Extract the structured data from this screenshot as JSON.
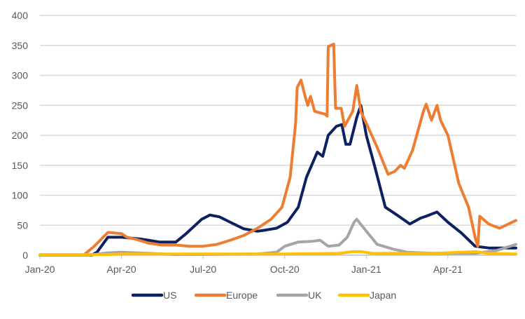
{
  "chart_data": {
    "type": "line",
    "title": "",
    "xlabel": "",
    "ylabel": "",
    "x_unit": "months since Jan-20",
    "xlim": [
      0,
      17.5
    ],
    "ylim": [
      0,
      400
    ],
    "yticks": [
      0,
      50,
      100,
      150,
      200,
      250,
      300,
      350,
      400
    ],
    "xticks": [
      {
        "at": 0,
        "label": "Jan-20"
      },
      {
        "at": 3,
        "label": "Apr-20"
      },
      {
        "at": 6,
        "label": "Jul-20"
      },
      {
        "at": 9,
        "label": "Oct-20"
      },
      {
        "at": 12,
        "label": "Jan-21"
      },
      {
        "at": 15,
        "label": "Apr-21"
      }
    ],
    "grid": true,
    "legend_position": "bottom",
    "series": [
      {
        "name": "US",
        "color": "#0d2160",
        "points": [
          [
            0,
            0
          ],
          [
            1.9,
            0
          ],
          [
            2.1,
            5
          ],
          [
            2.5,
            30
          ],
          [
            3.0,
            30
          ],
          [
            3.7,
            27
          ],
          [
            4.4,
            22
          ],
          [
            5.0,
            22
          ],
          [
            5.35,
            35
          ],
          [
            5.95,
            60
          ],
          [
            6.25,
            67
          ],
          [
            6.6,
            64
          ],
          [
            7.0,
            55
          ],
          [
            7.5,
            44
          ],
          [
            8.0,
            40
          ],
          [
            8.3,
            42
          ],
          [
            8.7,
            45
          ],
          [
            9.1,
            55
          ],
          [
            9.5,
            80
          ],
          [
            9.8,
            130
          ],
          [
            10.2,
            172
          ],
          [
            10.4,
            165
          ],
          [
            10.6,
            200
          ],
          [
            10.9,
            215
          ],
          [
            11.1,
            218
          ],
          [
            11.25,
            185
          ],
          [
            11.4,
            185
          ],
          [
            11.65,
            230
          ],
          [
            11.8,
            250
          ],
          [
            12.0,
            200
          ],
          [
            12.3,
            150
          ],
          [
            12.7,
            80
          ],
          [
            13.1,
            68
          ],
          [
            13.6,
            52
          ],
          [
            14.0,
            62
          ],
          [
            14.2,
            65
          ],
          [
            14.6,
            72
          ],
          [
            15.0,
            55
          ],
          [
            15.5,
            37
          ],
          [
            16.0,
            15
          ],
          [
            16.5,
            12
          ],
          [
            17.5,
            12
          ]
        ]
      },
      {
        "name": "Europe",
        "color": "#ed7d31",
        "points": [
          [
            0,
            0
          ],
          [
            1.6,
            0
          ],
          [
            2.0,
            15
          ],
          [
            2.5,
            38
          ],
          [
            3.0,
            36
          ],
          [
            3.2,
            30
          ],
          [
            3.5,
            27
          ],
          [
            4.0,
            20
          ],
          [
            4.5,
            17
          ],
          [
            5.0,
            17
          ],
          [
            5.5,
            15
          ],
          [
            6.0,
            15
          ],
          [
            6.5,
            18
          ],
          [
            7.0,
            25
          ],
          [
            7.5,
            33
          ],
          [
            8.0,
            45
          ],
          [
            8.5,
            60
          ],
          [
            8.9,
            80
          ],
          [
            9.2,
            130
          ],
          [
            9.4,
            220
          ],
          [
            9.46,
            280
          ],
          [
            9.6,
            292
          ],
          [
            9.75,
            265
          ],
          [
            9.85,
            250
          ],
          [
            9.95,
            265
          ],
          [
            10.1,
            240
          ],
          [
            10.5,
            235
          ],
          [
            10.56,
            232
          ],
          [
            10.6,
            348
          ],
          [
            10.8,
            352
          ],
          [
            10.87,
            245
          ],
          [
            11.08,
            245
          ],
          [
            11.2,
            215
          ],
          [
            11.5,
            240
          ],
          [
            11.65,
            283
          ],
          [
            11.8,
            240
          ],
          [
            12.0,
            220
          ],
          [
            12.4,
            180
          ],
          [
            12.8,
            135
          ],
          [
            13.05,
            140
          ],
          [
            13.26,
            150
          ],
          [
            13.4,
            145
          ],
          [
            13.7,
            175
          ],
          [
            14.1,
            240
          ],
          [
            14.2,
            252
          ],
          [
            14.4,
            225
          ],
          [
            14.6,
            250
          ],
          [
            14.73,
            225
          ],
          [
            15.0,
            200
          ],
          [
            15.4,
            120
          ],
          [
            15.76,
            80
          ],
          [
            16.0,
            30
          ],
          [
            16.1,
            15
          ],
          [
            16.17,
            65
          ],
          [
            16.5,
            52
          ],
          [
            16.9,
            45
          ],
          [
            17.5,
            58
          ]
        ]
      },
      {
        "name": "UK",
        "color": "#a5a5a5",
        "points": [
          [
            0,
            0
          ],
          [
            1.8,
            0
          ],
          [
            2.5,
            4
          ],
          [
            3.0,
            5
          ],
          [
            4.0,
            3
          ],
          [
            5.0,
            1
          ],
          [
            8.0,
            2
          ],
          [
            8.7,
            5
          ],
          [
            9.0,
            15
          ],
          [
            9.5,
            22
          ],
          [
            10.0,
            23
          ],
          [
            10.3,
            25
          ],
          [
            10.6,
            15
          ],
          [
            11.0,
            17
          ],
          [
            11.3,
            30
          ],
          [
            11.55,
            55
          ],
          [
            11.65,
            60
          ],
          [
            12.0,
            40
          ],
          [
            12.4,
            18
          ],
          [
            13.0,
            10
          ],
          [
            13.5,
            5
          ],
          [
            14.5,
            3
          ],
          [
            16.0,
            3
          ],
          [
            16.8,
            8
          ],
          [
            17.5,
            18
          ]
        ]
      },
      {
        "name": "Japan",
        "color": "#ffc000",
        "points": [
          [
            0,
            1
          ],
          [
            2.5,
            1
          ],
          [
            3.0,
            2
          ],
          [
            9.0,
            2
          ],
          [
            11.0,
            3
          ],
          [
            11.5,
            6
          ],
          [
            11.8,
            6
          ],
          [
            12.2,
            3
          ],
          [
            14.5,
            3
          ],
          [
            15.5,
            5
          ],
          [
            16.0,
            6
          ],
          [
            16.5,
            3
          ],
          [
            17.5,
            2
          ]
        ]
      }
    ]
  }
}
